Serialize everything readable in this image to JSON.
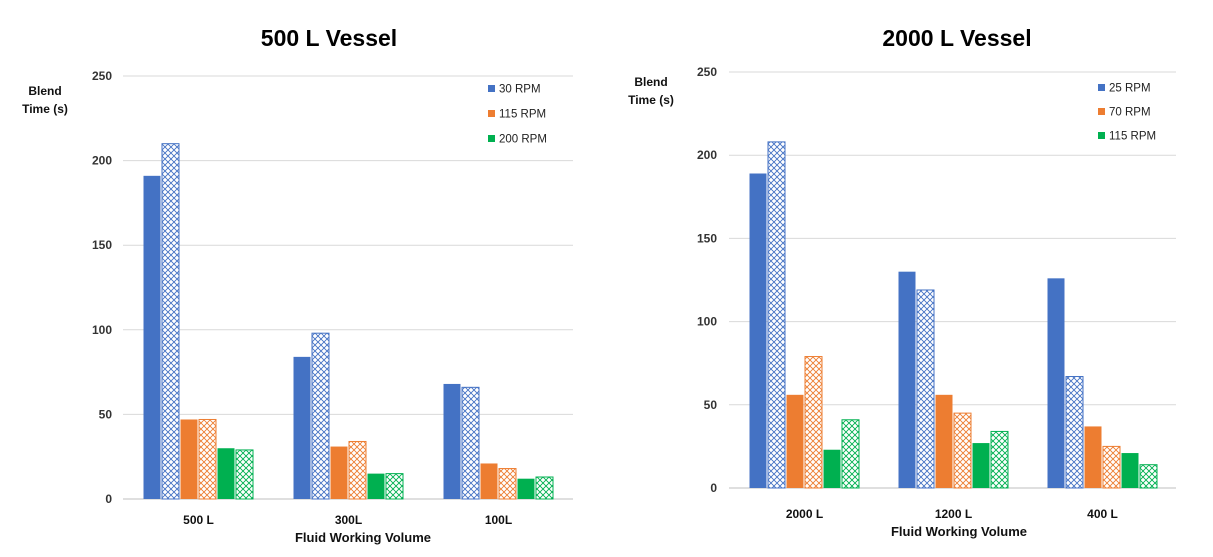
{
  "chart_data": [
    {
      "type": "bar",
      "title": "500 L Vessel",
      "ylabel": [
        "Blend",
        "Time (s)"
      ],
      "xlabel": "Fluid Working Volume",
      "ylim": [
        0,
        250
      ],
      "yticks": [
        0,
        50,
        100,
        150,
        200,
        250
      ],
      "grid": true,
      "legend_position": "top-right",
      "categories": [
        "500 L",
        "300L",
        "100L"
      ],
      "series": [
        {
          "name": "30 RPM",
          "color": "#4472C4",
          "fill": "solid",
          "values": [
            191,
            84,
            68
          ]
        },
        {
          "name": "",
          "color": "#4472C4",
          "fill": "crosshatch",
          "values": [
            210,
            98,
            66
          ]
        },
        {
          "name": "115 RPM",
          "color": "#ED7D31",
          "fill": "solid",
          "values": [
            47,
            31,
            21
          ]
        },
        {
          "name": "",
          "color": "#ED7D31",
          "fill": "crosshatch",
          "values": [
            47,
            34,
            18
          ]
        },
        {
          "name": "200 RPM",
          "color": "#00B050",
          "fill": "solid",
          "values": [
            30,
            15,
            12
          ]
        },
        {
          "name": "",
          "color": "#00B050",
          "fill": "crosshatch",
          "values": [
            29,
            15,
            13
          ]
        }
      ]
    },
    {
      "type": "bar",
      "title": "2000 L Vessel",
      "ylabel": [
        "Blend",
        "Time (s)"
      ],
      "xlabel": "Fluid Working Volume",
      "ylim": [
        0,
        250
      ],
      "yticks": [
        0,
        50,
        100,
        150,
        200,
        250
      ],
      "grid": true,
      "legend_position": "top-right",
      "categories": [
        "2000 L",
        "1200 L",
        "400 L"
      ],
      "series": [
        {
          "name": "25 RPM",
          "color": "#4472C4",
          "fill": "solid",
          "values": [
            189,
            130,
            126
          ]
        },
        {
          "name": "",
          "color": "#4472C4",
          "fill": "crosshatch",
          "values": [
            208,
            119,
            67
          ]
        },
        {
          "name": "70 RPM",
          "color": "#ED7D31",
          "fill": "solid",
          "values": [
            56,
            56,
            37
          ]
        },
        {
          "name": "",
          "color": "#ED7D31",
          "fill": "crosshatch",
          "values": [
            79,
            45,
            25
          ]
        },
        {
          "name": "115 RPM",
          "color": "#00B050",
          "fill": "solid",
          "values": [
            23,
            27,
            21
          ]
        },
        {
          "name": "",
          "color": "#00B050",
          "fill": "crosshatch",
          "values": [
            41,
            34,
            14
          ]
        }
      ]
    }
  ]
}
